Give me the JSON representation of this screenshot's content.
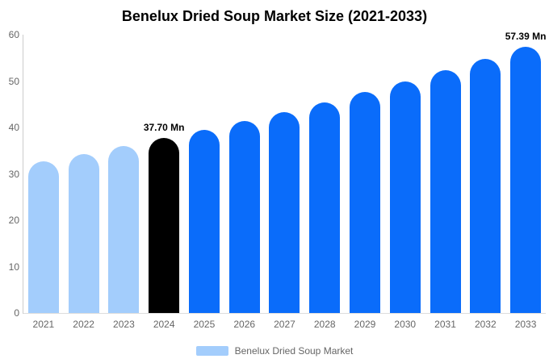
{
  "chart_data": {
    "type": "bar",
    "title": "Benelux Dried Soup Market Size (2021-2033)",
    "xlabel": "",
    "ylabel": "",
    "ylim": [
      0,
      60
    ],
    "yticks": [
      0,
      10,
      20,
      30,
      40,
      50,
      60
    ],
    "grid": false,
    "legend_position": "bottom",
    "legend_label": "Benelux Dried Soup Market",
    "categories": [
      "2021",
      "2022",
      "2023",
      "2024",
      "2025",
      "2026",
      "2027",
      "2028",
      "2029",
      "2030",
      "2031",
      "2032",
      "2033"
    ],
    "values": [
      32.77,
      34.34,
      35.98,
      37.7,
      39.5,
      41.39,
      43.37,
      45.44,
      47.61,
      49.89,
      52.27,
      54.77,
      57.39
    ],
    "bars": [
      {
        "year": "2021",
        "value": 32.77,
        "segment": "historical",
        "annotation": ""
      },
      {
        "year": "2022",
        "value": 34.34,
        "segment": "historical",
        "annotation": ""
      },
      {
        "year": "2023",
        "value": 35.98,
        "segment": "historical",
        "annotation": ""
      },
      {
        "year": "2024",
        "value": 37.7,
        "segment": "base-year",
        "annotation": "37.70 Mn"
      },
      {
        "year": "2025",
        "value": 39.5,
        "segment": "forecast",
        "annotation": ""
      },
      {
        "year": "2026",
        "value": 41.39,
        "segment": "forecast",
        "annotation": ""
      },
      {
        "year": "2027",
        "value": 43.37,
        "segment": "forecast",
        "annotation": ""
      },
      {
        "year": "2028",
        "value": 45.44,
        "segment": "forecast",
        "annotation": ""
      },
      {
        "year": "2029",
        "value": 47.61,
        "segment": "forecast",
        "annotation": ""
      },
      {
        "year": "2030",
        "value": 49.89,
        "segment": "forecast",
        "annotation": ""
      },
      {
        "year": "2031",
        "value": 52.27,
        "segment": "forecast",
        "annotation": ""
      },
      {
        "year": "2032",
        "value": 54.77,
        "segment": "forecast",
        "annotation": ""
      },
      {
        "year": "2033",
        "value": 57.39,
        "segment": "forecast",
        "annotation": "57.39 Mn"
      }
    ],
    "colors": {
      "historical": "#a3cdfc",
      "base-year": "#000000",
      "forecast": "#0a6cfa",
      "axis_text": "#666666",
      "axis_line": "#cccccc",
      "annotation_text": "#000000",
      "legend_swatch": "#a3cdfc"
    }
  }
}
